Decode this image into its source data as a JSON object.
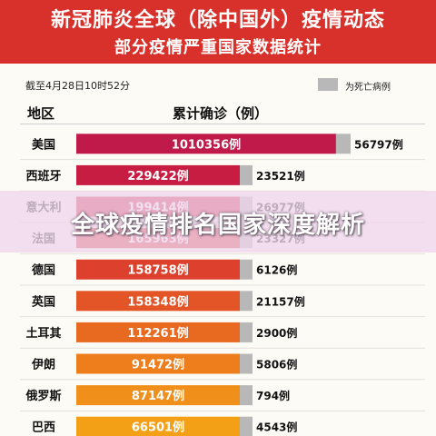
{
  "header": {
    "title": "新冠肺炎全球（除中国外）疫情动态",
    "subtitle": "部分疫情严重国家数据统计"
  },
  "date_note": "截至4月28日10时52分",
  "legend": {
    "deaths_label": "为死亡病例"
  },
  "table_headers": {
    "region": "地区",
    "confirmed": "累计确诊（例）"
  },
  "overlay_banner": "全球疫情排名国家深度解析",
  "colors": {
    "header_bg": "#d8312b",
    "death_bar": "#b8b8b8",
    "bar_gradient": [
      "#bf1a4a",
      "#d4203a",
      "#e04a2a",
      "#ec7a1c",
      "#f4a016"
    ]
  },
  "chart_data": {
    "type": "bar",
    "orientation": "horizontal",
    "categories": [
      "美国",
      "西班牙",
      "意大利",
      "法国",
      "德国",
      "英国",
      "土耳其",
      "伊朗",
      "俄罗斯",
      "巴西"
    ],
    "series": [
      {
        "name": "累计确诊（例）",
        "values": [
          1010356,
          229422,
          199414,
          165963,
          158758,
          158348,
          112261,
          91472,
          87147,
          66501
        ],
        "labels": [
          "1010356例",
          "229422例",
          "199414例",
          "165963例",
          "158758例",
          "158348例",
          "112261例",
          "91472例",
          "87147例",
          "66501例"
        ]
      },
      {
        "name": "为死亡病例",
        "values": [
          56797,
          23521,
          26977,
          23327,
          6126,
          21157,
          2900,
          5806,
          794,
          4543
        ],
        "labels": [
          "56797例",
          "23521例",
          "26977例",
          "23327例",
          "6126例",
          "21157例",
          "2900例",
          "5806例",
          "794例",
          "4543例"
        ]
      }
    ]
  }
}
